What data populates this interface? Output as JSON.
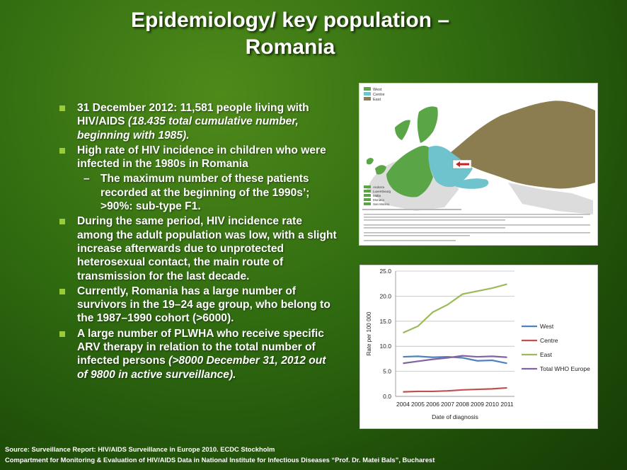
{
  "slide": {
    "title_line1": "Epidemiology/ key population –",
    "title_line2": "Romania"
  },
  "bullets": {
    "b1_text": "31 December 2012: 11,581 people living with HIV/AIDS ",
    "b1_italic": "(18.435 total cumulative number, beginning with 1985).",
    "b2_text": "High rate of HIV incidence in children who were infected in the 1980s in Romania",
    "b2_sub": "The maximum number of these patients recorded at the beginning of the 1990s’; >90%: sub-type F1.",
    "b3_text": "During the same period, HIV incidence rate among the adult population was low, with a slight increase afterwards due to unprotected heterosexual contact, the main route of transmission for the last decade.",
    "b4_text": "Currently, Romania has a large number of survivors in the 19–24 age group, who belong to the 1987–1990 cohort (>6000).",
    "b5_text": "A large number of  PLWHA who receive specific ARV therapy in relation to the total number of infected persons ",
    "b5_italic": "(>8000 December 31, 2012 out of 9800 in active surveillance).",
    "sub_dash": "–"
  },
  "map": {
    "legend_top": [
      "West",
      "Centre",
      "East"
    ],
    "legend_bottom": [
      "Andorra",
      "Luxembourg",
      "Malta",
      "Monaco",
      "San Marino"
    ],
    "colors": {
      "west": "#5aa646",
      "centre": "#6ec3cc",
      "east": "#8b7d50",
      "other": "#dcdcdc",
      "arrow": "#cc2222"
    }
  },
  "chart_data": {
    "type": "line",
    "x": [
      2004,
      2005,
      2006,
      2007,
      2008,
      2009,
      2010,
      2011
    ],
    "xlabel": "Date of diagnosis",
    "ylabel": "Rate per 100 000",
    "ylim": [
      0,
      25
    ],
    "yticks": [
      "0.0",
      "5.0",
      "10.0",
      "15.0",
      "20.0",
      "25.0"
    ],
    "grid": true,
    "legend_position": "right",
    "series": [
      {
        "name": "West",
        "color": "#4f81bd",
        "values": [
          7.9,
          8.0,
          7.8,
          7.9,
          7.7,
          7.1,
          7.2,
          6.6
        ]
      },
      {
        "name": "Centre",
        "color": "#c0504d",
        "values": [
          0.9,
          1.0,
          1.0,
          1.1,
          1.3,
          1.4,
          1.5,
          1.7
        ]
      },
      {
        "name": "East",
        "color": "#9bbb59",
        "values": [
          12.7,
          14.0,
          16.8,
          18.3,
          20.4,
          21.0,
          21.6,
          22.4
        ]
      },
      {
        "name": "Total WHO Europe",
        "color": "#8064a2",
        "values": [
          6.6,
          7.0,
          7.4,
          7.7,
          8.1,
          7.9,
          8.0,
          7.8
        ]
      }
    ]
  },
  "footer": {
    "line1": "Source: Surveillance Report: HIV/AIDS Surveillance in Europe 2010. ECDC Stockholm",
    "line2": "Compartment for Monitoring & Evaluation of HIV/AIDS Data in National Institute for Infectious Diseases “Prof. Dr. Matei Bals”, Bucharest"
  }
}
